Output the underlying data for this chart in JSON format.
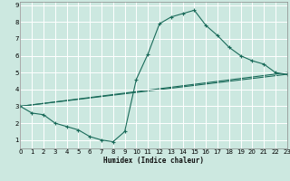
{
  "xlabel": "Humidex (Indice chaleur)",
  "bg_color": "#cce8e0",
  "grid_color": "#ffffff",
  "line_color": "#1a6b5a",
  "xlim": [
    0,
    23
  ],
  "ylim": [
    0.5,
    9.2
  ],
  "xticks": [
    0,
    1,
    2,
    3,
    4,
    5,
    6,
    7,
    8,
    9,
    10,
    11,
    12,
    13,
    14,
    15,
    16,
    17,
    18,
    19,
    20,
    21,
    22,
    23
  ],
  "yticks": [
    1,
    2,
    3,
    4,
    5,
    6,
    7,
    8,
    9
  ],
  "line1_x": [
    0,
    1,
    2,
    3,
    4,
    5,
    6,
    7,
    8,
    9,
    10,
    11,
    12,
    13,
    14,
    15,
    16,
    17,
    18,
    19,
    20,
    21,
    22,
    23
  ],
  "line1_y": [
    3.0,
    2.6,
    2.5,
    2.0,
    1.8,
    1.6,
    1.2,
    1.0,
    0.9,
    1.5,
    4.6,
    6.1,
    7.9,
    8.3,
    8.5,
    8.7,
    7.8,
    7.2,
    6.5,
    6.0,
    5.7,
    5.5,
    5.0,
    4.9
  ],
  "line2_x": [
    0,
    23
  ],
  "line2_y": [
    3.0,
    5.0
  ],
  "line3_x": [
    0,
    23
  ],
  "line3_y": [
    3.0,
    4.9
  ]
}
